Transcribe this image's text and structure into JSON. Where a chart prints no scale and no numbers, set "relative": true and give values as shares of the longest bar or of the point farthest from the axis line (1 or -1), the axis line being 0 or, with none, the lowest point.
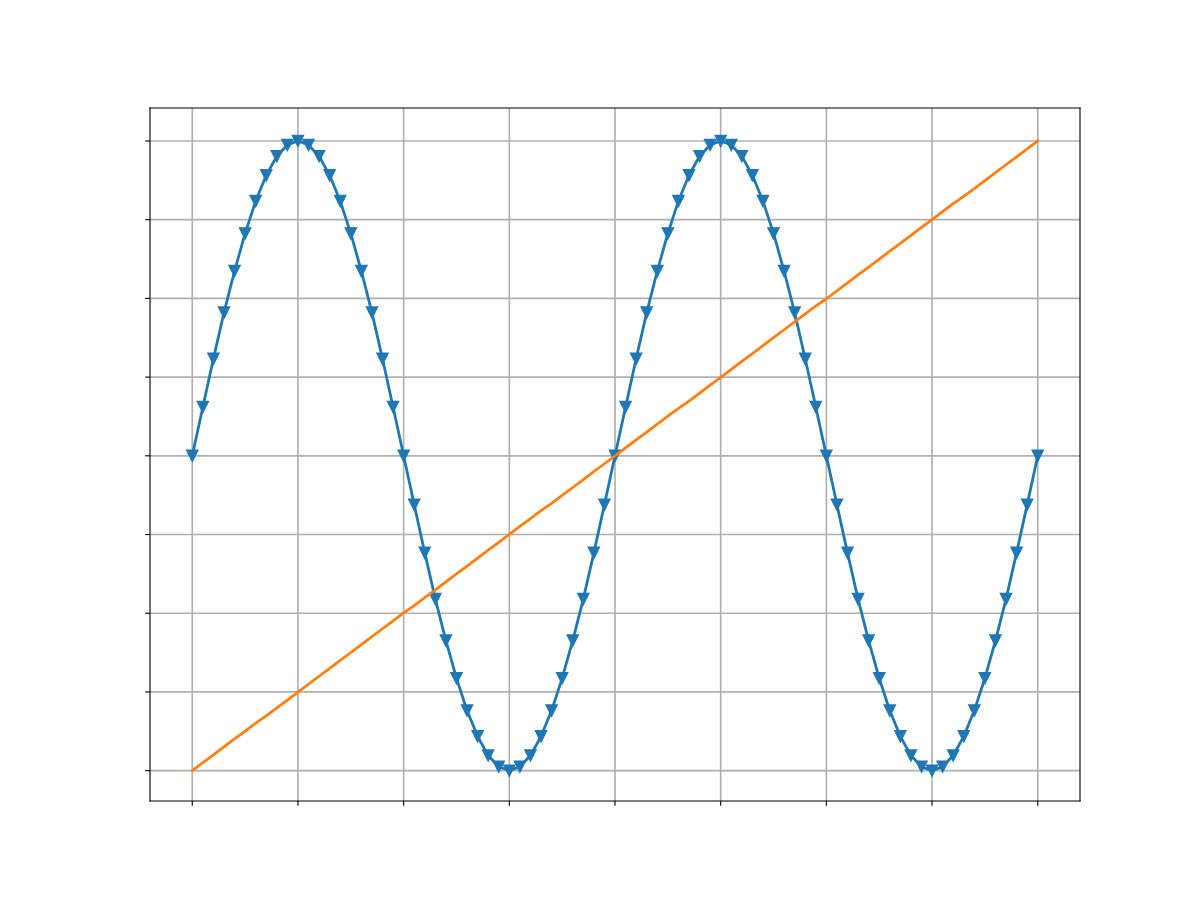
{
  "chart_data": {
    "type": "line",
    "relative": true,
    "grid": true,
    "tick_labels": false,
    "categories": [
      null,
      null,
      null,
      null,
      null,
      null,
      null,
      null,
      null,
      null,
      null,
      null,
      null,
      null,
      null,
      null,
      null,
      null,
      null,
      null,
      null,
      null,
      null,
      null,
      null,
      null,
      null,
      null,
      null,
      null,
      null,
      null,
      null,
      null,
      null,
      null,
      null,
      null,
      null,
      null,
      null,
      null,
      null,
      null,
      null,
      null,
      null,
      null,
      null,
      null,
      null,
      null,
      null,
      null,
      null,
      null,
      null,
      null,
      null,
      null,
      null,
      null,
      null,
      null,
      null,
      null,
      null,
      null,
      null,
      null,
      null,
      null,
      null,
      null,
      null,
      null,
      null,
      null,
      null,
      null,
      null
    ],
    "series": [
      {
        "color": "#1f77b4",
        "marker": "triangle",
        "values": [
          0.523,
          0.597,
          0.67,
          0.74,
          0.803,
          0.86,
          0.909,
          0.948,
          0.977,
          0.994,
          1.0,
          0.994,
          0.977,
          0.948,
          0.909,
          0.86,
          0.803,
          0.74,
          0.67,
          0.597,
          0.523,
          0.449,
          0.376,
          0.306,
          0.243,
          0.186,
          0.137,
          0.098,
          0.069,
          0.052,
          0.046,
          0.052,
          0.069,
          0.098,
          0.137,
          0.186,
          0.243,
          0.306,
          0.376,
          0.449,
          0.523,
          0.597,
          0.67,
          0.74,
          0.803,
          0.86,
          0.909,
          0.948,
          0.977,
          0.994,
          1.0,
          0.994,
          0.977,
          0.948,
          0.909,
          0.86,
          0.803,
          0.74,
          0.67,
          0.597,
          0.523,
          0.449,
          0.376,
          0.306,
          0.243,
          0.186,
          0.137,
          0.098,
          0.069,
          0.052,
          0.046,
          0.052,
          0.069,
          0.098,
          0.137,
          0.186,
          0.243,
          0.306,
          0.376,
          0.449,
          0.523
        ]
      },
      {
        "color": "#ff7f0e",
        "marker": "none",
        "values": [
          0.046,
          0.058,
          0.07,
          0.082,
          0.094,
          0.106,
          0.118,
          0.129,
          0.141,
          0.153,
          0.165,
          0.177,
          0.189,
          0.201,
          0.213,
          0.225,
          0.237,
          0.249,
          0.261,
          0.273,
          0.285,
          0.296,
          0.308,
          0.32,
          0.332,
          0.344,
          0.356,
          0.368,
          0.38,
          0.392,
          0.404,
          0.416,
          0.428,
          0.44,
          0.451,
          0.463,
          0.475,
          0.487,
          0.499,
          0.511,
          0.523,
          0.535,
          0.547,
          0.559,
          0.571,
          0.583,
          0.595,
          0.606,
          0.618,
          0.63,
          0.642,
          0.654,
          0.666,
          0.678,
          0.69,
          0.702,
          0.714,
          0.726,
          0.738,
          0.75,
          0.761,
          0.773,
          0.785,
          0.797,
          0.809,
          0.821,
          0.833,
          0.845,
          0.857,
          0.869,
          0.881,
          0.893,
          0.905,
          0.916,
          0.928,
          0.94,
          0.952,
          0.964,
          0.976,
          0.988,
          1.0
        ]
      }
    ]
  }
}
